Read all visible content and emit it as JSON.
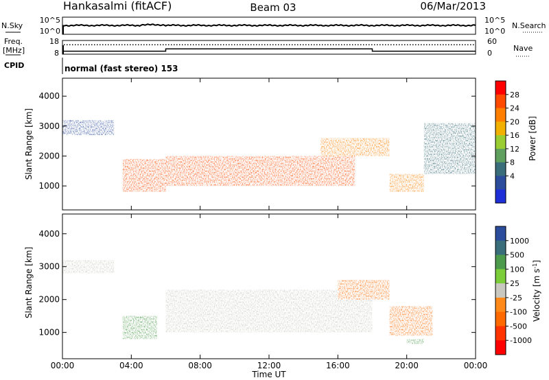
{
  "header": {
    "station": "Hankasalmi (fitACF)",
    "beam": "Beam 03",
    "date": "06/Mar/2013"
  },
  "noise_panel": {
    "left_label": "N.Sky",
    "right_label": "N.Search",
    "left_ticks": [
      "10^5",
      "10^0"
    ],
    "right_ticks": [
      "10^5",
      "10^0"
    ]
  },
  "freq_panel": {
    "left_label_line1": "Freq.",
    "left_label_line2": "[MHz]",
    "right_label": "Nave",
    "left_ticks": [
      "18",
      "8"
    ],
    "right_ticks": [
      "60",
      "0"
    ]
  },
  "cpid_panel": {
    "label": "CPID",
    "mode_text": "normal (fast stereo) 153"
  },
  "power_panel": {
    "ylabel": "Slant Range [km]",
    "yticks": [
      "4000",
      "3000",
      "2000",
      "1000"
    ],
    "colorbar_label": "Power [dB]",
    "colorbar_ticks": [
      "28",
      "24",
      "20",
      "16",
      "12",
      "8",
      "4"
    ],
    "colorbar_colors": [
      "#ff0000",
      "#ff4a00",
      "#ff8000",
      "#f2b000",
      "#9acd32",
      "#5fa05f",
      "#3a6e7a",
      "#2c4c9c",
      "#1f2fd8"
    ]
  },
  "velocity_panel": {
    "ylabel": "Slant Range [km]",
    "yticks": [
      "4000",
      "3000",
      "2000",
      "1000"
    ],
    "colorbar_label_main": "Velocity [m s",
    "colorbar_label_sup": "-1",
    "colorbar_label_end": "]",
    "colorbar_ticks": [
      "1000",
      "500",
      "100",
      "25",
      "-25",
      "-100",
      "-500",
      "-1000"
    ],
    "colorbar_colors": [
      "#2c4c9c",
      "#3a6e7a",
      "#4c9a4c",
      "#7ccd3a",
      "#c8c8c0",
      "#ff8a1a",
      "#ff6a00",
      "#ff3300",
      "#ff0000"
    ]
  },
  "xaxis": {
    "label": "Time UT",
    "ticks": [
      "00:00",
      "04:00",
      "08:00",
      "12:00",
      "16:00",
      "20:00",
      "00:00"
    ]
  },
  "chart_data": {
    "type": "heatmap",
    "title": "Hankasalmi (fitACF) Beam 03 06/Mar/2013",
    "xlabel": "Time UT",
    "ylabel": "Slant Range [km]",
    "xlim_hours": [
      0,
      24
    ],
    "ylim_km": [
      200,
      4600
    ],
    "noise_sky_level": "approximately 10^2 to 10^3 throughout",
    "frequency_mhz": [
      {
        "start_hr": 0,
        "end_hr": 6,
        "value": 10
      },
      {
        "start_hr": 6,
        "end_hr": 18,
        "value": 12
      },
      {
        "start_hr": 18,
        "end_hr": 24,
        "value": 10
      }
    ],
    "nave": 45,
    "cpid": 153,
    "power_regions_db": [
      {
        "t_start": 0,
        "t_end": 3,
        "range_km": [
          2700,
          3200
        ],
        "power": 6
      },
      {
        "t_start": 3.5,
        "t_end": 6,
        "range_km": [
          800,
          1900
        ],
        "power": 26
      },
      {
        "t_start": 6,
        "t_end": 17,
        "range_km": [
          1000,
          2000
        ],
        "power": 25
      },
      {
        "t_start": 15,
        "t_end": 19,
        "range_km": [
          2000,
          2600
        ],
        "power": 22
      },
      {
        "t_start": 19,
        "t_end": 21,
        "range_km": [
          800,
          1400
        ],
        "power": 24
      },
      {
        "t_start": 21,
        "t_end": 24,
        "range_km": [
          1400,
          3100
        ],
        "power": 8
      }
    ],
    "velocity_regions_ms": [
      {
        "t_start": 0,
        "t_end": 3,
        "range_km": [
          2800,
          3200
        ],
        "velocity": 0
      },
      {
        "t_start": 3.5,
        "t_end": 5.5,
        "range_km": [
          800,
          1500
        ],
        "velocity": 150
      },
      {
        "t_start": 6,
        "t_end": 18,
        "range_km": [
          1000,
          2300
        ],
        "velocity": 0
      },
      {
        "t_start": 16,
        "t_end": 19,
        "range_km": [
          2000,
          2600
        ],
        "velocity": -300
      },
      {
        "t_start": 19,
        "t_end": 21.5,
        "range_km": [
          900,
          1800
        ],
        "velocity": -200
      },
      {
        "t_start": 20,
        "t_end": 21,
        "range_km": [
          650,
          800
        ],
        "velocity": 100
      }
    ]
  }
}
